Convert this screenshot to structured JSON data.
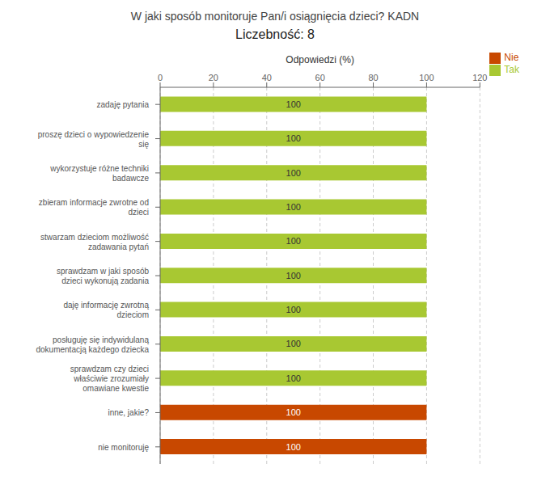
{
  "chart_data": {
    "type": "bar",
    "orientation": "horizontal",
    "title": "W jaki sposób monitoruje Pan/i osiągnięcia dzieci?  KADN",
    "subtitle": "Liczebność: 8",
    "xlabel": "Odpowiedzi (%)",
    "categories": [
      "nie monitoruję",
      "inne, jakie?",
      "sprawdzam czy dzieci\nwłaściwie zrozumiały\nomawiane kwestie",
      "posługuję się indywidulaną\ndokumentacją każdego dziecka",
      "daję informację zwrotną\ndzieciom",
      "sprawdzam w jaki sposób\ndzieci wykonują zadania",
      "stwarzam dzieciom możliwość\nzadawania pytań",
      "zbieram informacje zwrotne od\ndzieci",
      "wykorzystuje różne techniki\nbadawcze",
      "proszę dzieci o wypowiedzenie\nsię",
      "zadaję pytania"
    ],
    "series": [
      {
        "name": "Tak",
        "color": "#a8c832",
        "values": [
          0,
          0,
          100,
          100,
          100,
          100,
          100,
          100,
          100,
          100,
          100
        ]
      },
      {
        "name": "Nie",
        "color": "#c84800",
        "values": [
          100,
          100,
          0,
          0,
          0,
          0,
          0,
          0,
          0,
          0,
          0
        ]
      }
    ],
    "xlim": [
      0,
      120
    ],
    "xticks": [
      0,
      20,
      40,
      60,
      80,
      100,
      120
    ],
    "grid": true,
    "legend": "upper right",
    "data_labels": true
  }
}
